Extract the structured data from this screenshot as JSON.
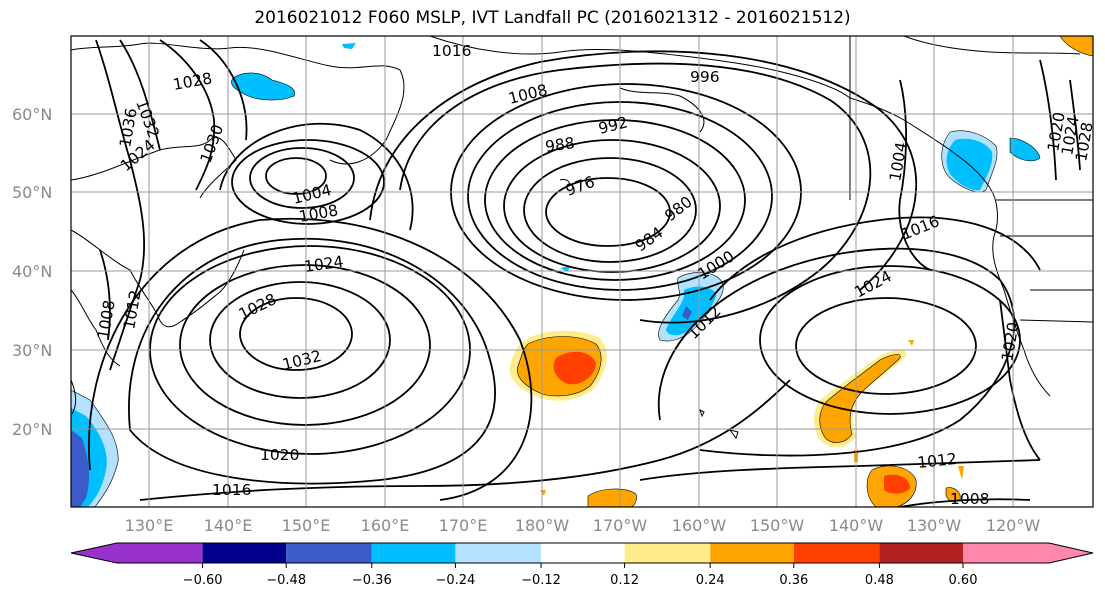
{
  "title": "2016021012 F060 MSLP, IVT Landfall PC (2016021312 - 2016021512)",
  "lon_labels": [
    "130°E",
    "140°E",
    "150°E",
    "160°E",
    "170°E",
    "180°W",
    "170°W",
    "160°W",
    "150°W",
    "140°W",
    "130°W",
    "120°W"
  ],
  "lat_labels": [
    "60°N",
    "50°N",
    "40°N",
    "30°N",
    "20°N"
  ],
  "isobar_labels": [
    "1016",
    "996",
    "1008",
    "992",
    "988",
    "976",
    "980",
    "984",
    "1000",
    "1012",
    "1024",
    "1016",
    "1004",
    "1008",
    "1024",
    "1028",
    "1032",
    "1020",
    "1016",
    "1012",
    "1008",
    "1032",
    "1028",
    "1036",
    "1030",
    "1024",
    "1008",
    "1012",
    "1020",
    "1024",
    "1028",
    "1004",
    "1020"
  ],
  "colorbar": {
    "ticks": [
      "−0.60",
      "−0.48",
      "−0.36",
      "−0.24",
      "−0.12",
      "0.12",
      "0.24",
      "0.36",
      "0.48",
      "0.60"
    ],
    "colors": [
      "#9932cc",
      "#9932cc",
      "#00008b",
      "#3a5bc9",
      "#00bfff",
      "#b2e2ff",
      "#ffffff",
      "#ffec8b",
      "#ffa500",
      "#ff4000",
      "#b22222",
      "#ff88aa",
      "#ff88aa"
    ]
  },
  "colors": {
    "neg_light": "#b2e2ff",
    "neg_mid": "#00bfff",
    "neg_strong": "#3a5bc9",
    "neg_deep": "#9932cc",
    "pos_light": "#ffec8b",
    "pos_mid": "#ffa500",
    "pos_strong": "#ff4000"
  }
}
